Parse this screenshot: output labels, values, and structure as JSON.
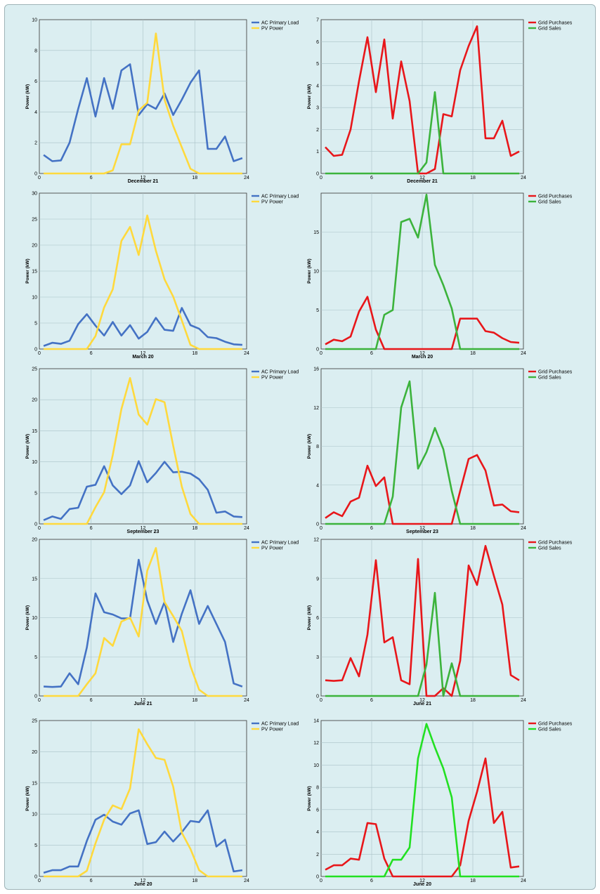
{
  "chart_data": [
    {
      "type": "line",
      "title": "",
      "xlabel": "December 21",
      "ylabel": "Power (kW)",
      "xlim": [
        0,
        24
      ],
      "ylim": [
        0,
        10
      ],
      "xticks": [
        0,
        6,
        12,
        18,
        24
      ],
      "yticks": [
        0,
        2,
        4,
        6,
        8,
        10
      ],
      "grid": true,
      "legend": "top-right",
      "x": [
        0.5,
        1.5,
        2.5,
        3.5,
        4.5,
        5.5,
        6.5,
        7.5,
        8.5,
        9.5,
        10.5,
        11.5,
        12.5,
        13.5,
        14.5,
        15.5,
        16.5,
        17.5,
        18.5,
        19.5,
        20.5,
        21.5,
        22.5,
        23.5
      ],
      "series": [
        {
          "name": "AC Primary Load",
          "color": "#4472c4",
          "values": [
            1.2,
            0.8,
            0.85,
            2.0,
            4.2,
            6.2,
            3.7,
            6.2,
            4.2,
            6.7,
            7.1,
            3.8,
            4.5,
            4.2,
            5.2,
            3.8,
            4.8,
            5.9,
            6.7,
            1.6,
            1.6,
            2.4,
            0.8,
            1.0
          ]
        },
        {
          "name": "PV Power",
          "color": "#ffd93d",
          "values": [
            0,
            0,
            0,
            0,
            0,
            0,
            0,
            0,
            0.2,
            1.9,
            1.9,
            4.1,
            4.6,
            9.1,
            4.8,
            3.1,
            1.7,
            0.3,
            0,
            0,
            0,
            0,
            0,
            0
          ]
        }
      ]
    },
    {
      "type": "line",
      "title": "",
      "xlabel": "December 21",
      "ylabel": "Power (kW)",
      "xlim": [
        0,
        24
      ],
      "ylim": [
        0,
        7
      ],
      "xticks": [
        0,
        6,
        12,
        18,
        24
      ],
      "yticks": [
        0,
        1,
        2,
        3,
        4,
        5,
        6,
        7
      ],
      "grid": true,
      "legend": "top-right",
      "x": [
        0.5,
        1.5,
        2.5,
        3.5,
        4.5,
        5.5,
        6.5,
        7.5,
        8.5,
        9.5,
        10.5,
        11.5,
        12.5,
        13.5,
        14.5,
        15.5,
        16.5,
        17.5,
        18.5,
        19.5,
        20.5,
        21.5,
        22.5,
        23.5
      ],
      "series": [
        {
          "name": "Grid Purchases",
          "color": "#e8161a",
          "values": [
            1.2,
            0.8,
            0.85,
            2.0,
            4.2,
            6.2,
            3.7,
            6.1,
            2.5,
            5.1,
            3.3,
            0,
            0,
            0.2,
            2.7,
            2.6,
            4.7,
            5.8,
            6.7,
            1.6,
            1.6,
            2.4,
            0.8,
            1.0
          ]
        },
        {
          "name": "Grid Sales",
          "color": "#3cb33c",
          "values": [
            0,
            0,
            0,
            0,
            0,
            0,
            0,
            0,
            0,
            0,
            0,
            0,
            0.5,
            3.7,
            0,
            0,
            0,
            0,
            0,
            0,
            0,
            0,
            0,
            0
          ]
        }
      ]
    },
    {
      "type": "line",
      "title": "",
      "xlabel": "March 20",
      "ylabel": "Power (kW)",
      "xlim": [
        0,
        24
      ],
      "ylim": [
        0,
        30
      ],
      "xticks": [
        0,
        6,
        12,
        18,
        24
      ],
      "yticks": [
        0,
        5,
        10,
        15,
        20,
        25,
        30
      ],
      "grid": true,
      "legend": "top-right",
      "x": [
        0.5,
        1.5,
        2.5,
        3.5,
        4.5,
        5.5,
        6.5,
        7.5,
        8.5,
        9.5,
        10.5,
        11.5,
        12.5,
        13.5,
        14.5,
        15.5,
        16.5,
        17.5,
        18.5,
        19.5,
        20.5,
        21.5,
        22.5,
        23.5
      ],
      "series": [
        {
          "name": "AC Primary Load",
          "color": "#4472c4",
          "values": [
            0.6,
            1.2,
            1.0,
            1.6,
            4.8,
            6.7,
            4.5,
            2.6,
            5.2,
            2.6,
            4.6,
            2.0,
            3.3,
            6.0,
            3.7,
            3.5,
            7.9,
            4.6,
            3.9,
            2.3,
            2.1,
            1.4,
            0.9,
            0.8
          ]
        },
        {
          "name": "PV Power",
          "color": "#ffd93d",
          "values": [
            0,
            0,
            0,
            0,
            0,
            0,
            2.5,
            8.0,
            11.5,
            20.8,
            23.5,
            18.1,
            25.7,
            18.9,
            13.4,
            10.1,
            5.5,
            0.8,
            0,
            0,
            0,
            0,
            0,
            0
          ]
        }
      ]
    },
    {
      "type": "line",
      "title": "",
      "xlabel": "March 20",
      "ylabel": "Power (kW)",
      "xlim": [
        0,
        24
      ],
      "ylim": [
        0,
        20
      ],
      "xticks": [
        0,
        6,
        12,
        18,
        24
      ],
      "yticks": [
        0,
        5,
        10,
        15
      ],
      "grid": true,
      "legend": "top-right",
      "x": [
        0.5,
        1.5,
        2.5,
        3.5,
        4.5,
        5.5,
        6.5,
        7.5,
        8.5,
        9.5,
        10.5,
        11.5,
        12.5,
        13.5,
        14.5,
        15.5,
        16.5,
        17.5,
        18.5,
        19.5,
        20.5,
        21.5,
        22.5,
        23.5
      ],
      "series": [
        {
          "name": "Grid Purchases",
          "color": "#e8161a",
          "values": [
            0.6,
            1.2,
            1.0,
            1.6,
            4.8,
            6.7,
            2.5,
            0,
            0,
            0,
            0,
            0,
            0,
            0,
            0,
            0,
            3.9,
            3.9,
            3.9,
            2.3,
            2.1,
            1.4,
            0.9,
            0.8
          ]
        },
        {
          "name": "Grid Sales",
          "color": "#3cb33c",
          "values": [
            0,
            0,
            0,
            0,
            0,
            0,
            0,
            4.4,
            5.0,
            16.3,
            16.7,
            14.3,
            19.8,
            10.8,
            8.2,
            5.2,
            0,
            0,
            0,
            0,
            0,
            0,
            0,
            0
          ]
        }
      ]
    },
    {
      "type": "line",
      "title": "",
      "xlabel": "September 23",
      "ylabel": "Power (kW)",
      "xlim": [
        0,
        24
      ],
      "ylim": [
        0,
        25
      ],
      "xticks": [
        0,
        6,
        12,
        18,
        24
      ],
      "yticks": [
        0,
        5,
        10,
        15,
        20,
        25
      ],
      "grid": true,
      "legend": "top-right",
      "x": [
        0.5,
        1.5,
        2.5,
        3.5,
        4.5,
        5.5,
        6.5,
        7.5,
        8.5,
        9.5,
        10.5,
        11.5,
        12.5,
        13.5,
        14.5,
        15.5,
        16.5,
        17.5,
        18.5,
        19.5,
        20.5,
        21.5,
        22.5,
        23.5
      ],
      "series": [
        {
          "name": "AC Primary Load",
          "color": "#4472c4",
          "values": [
            0.6,
            1.2,
            0.8,
            2.4,
            2.6,
            6.0,
            6.3,
            9.3,
            6.2,
            4.8,
            6.2,
            10.1,
            6.7,
            8.2,
            10.0,
            8.3,
            8.4,
            8.1,
            7.2,
            5.5,
            1.8,
            2.0,
            1.2,
            1.1
          ]
        },
        {
          "name": "PV Power",
          "color": "#ffd93d",
          "values": [
            0,
            0,
            0,
            0,
            0,
            0,
            2.7,
            5.1,
            11.1,
            18.5,
            23.5,
            17.6,
            16.0,
            20.1,
            19.6,
            12.6,
            6.0,
            1.6,
            0,
            0,
            0,
            0,
            0,
            0
          ]
        }
      ]
    },
    {
      "type": "line",
      "title": "",
      "xlabel": "September 23",
      "ylabel": "Power (kW)",
      "xlim": [
        0,
        24
      ],
      "ylim": [
        0,
        16
      ],
      "xticks": [
        0,
        6,
        12,
        18,
        24
      ],
      "yticks": [
        0,
        4,
        8,
        12,
        16
      ],
      "grid": true,
      "legend": "top-right",
      "x": [
        0.5,
        1.5,
        2.5,
        3.5,
        4.5,
        5.5,
        6.5,
        7.5,
        8.5,
        9.5,
        10.5,
        11.5,
        12.5,
        13.5,
        14.5,
        15.5,
        16.5,
        17.5,
        18.5,
        19.5,
        20.5,
        21.5,
        22.5,
        23.5
      ],
      "series": [
        {
          "name": "Grid Purchases",
          "color": "#e8161a",
          "values": [
            0.6,
            1.2,
            0.8,
            2.3,
            2.7,
            6.0,
            3.9,
            4.8,
            0,
            0,
            0,
            0,
            0,
            0,
            0,
            0,
            3.4,
            6.7,
            7.1,
            5.5,
            1.9,
            2.0,
            1.3,
            1.2
          ]
        },
        {
          "name": "Grid Sales",
          "color": "#3cb33c",
          "values": [
            0,
            0,
            0,
            0,
            0,
            0,
            0,
            0,
            2.8,
            12.0,
            14.7,
            5.7,
            7.4,
            9.9,
            7.7,
            3.4,
            0,
            0,
            0,
            0,
            0,
            0,
            0,
            0
          ]
        }
      ]
    },
    {
      "type": "line",
      "title": "",
      "xlabel": "June 21",
      "ylabel": "Power (kW)",
      "xlim": [
        0,
        24
      ],
      "ylim": [
        0,
        20
      ],
      "xticks": [
        0,
        6,
        12,
        18,
        24
      ],
      "yticks": [
        0,
        5,
        10,
        15,
        20
      ],
      "grid": true,
      "legend": "top-right",
      "x": [
        0.5,
        1.5,
        2.5,
        3.5,
        4.5,
        5.5,
        6.5,
        7.5,
        8.5,
        9.5,
        10.5,
        11.5,
        12.5,
        13.5,
        14.5,
        15.5,
        16.5,
        17.5,
        18.5,
        19.5,
        20.5,
        21.5,
        22.5,
        23.5
      ],
      "series": [
        {
          "name": "AC Primary Load",
          "color": "#4472c4",
          "values": [
            1.2,
            1.15,
            1.2,
            2.9,
            1.5,
            6.2,
            13.1,
            10.7,
            10.4,
            9.9,
            9.9,
            17.4,
            12.2,
            9.2,
            12.0,
            6.9,
            10.5,
            13.5,
            9.2,
            11.5,
            9.2,
            6.9,
            1.6,
            1.2
          ]
        },
        {
          "name": "PV Power",
          "color": "#ffd93d",
          "values": [
            0,
            0,
            0,
            0,
            0,
            1.5,
            2.9,
            7.4,
            6.4,
            9.5,
            10.0,
            7.6,
            16.0,
            18.9,
            12.0,
            10.2,
            8.3,
            3.8,
            0.8,
            0,
            0,
            0,
            0,
            0
          ]
        }
      ]
    },
    {
      "type": "line",
      "title": "",
      "xlabel": "June 21",
      "ylabel": "Power (kW)",
      "xlim": [
        0,
        24
      ],
      "ylim": [
        0,
        12
      ],
      "xticks": [
        0,
        6,
        12,
        18,
        24
      ],
      "yticks": [
        0,
        3,
        6,
        9,
        12
      ],
      "grid": true,
      "legend": "top-right",
      "x": [
        0.5,
        1.5,
        2.5,
        3.5,
        4.5,
        5.5,
        6.5,
        7.5,
        8.5,
        9.5,
        10.5,
        11.5,
        12.5,
        13.5,
        14.5,
        15.5,
        16.5,
        17.5,
        18.5,
        19.5,
        20.5,
        21.5,
        22.5,
        23.5
      ],
      "series": [
        {
          "name": "Grid Purchases",
          "color": "#e8161a",
          "values": [
            1.2,
            1.15,
            1.2,
            2.9,
            1.5,
            4.7,
            10.4,
            4.1,
            4.5,
            1.2,
            0.9,
            10.5,
            0,
            0,
            0.6,
            0,
            2.7,
            10.0,
            8.5,
            11.5,
            9.2,
            7.0,
            1.6,
            1.2
          ]
        },
        {
          "name": "Grid Sales",
          "color": "#3cb33c",
          "values": [
            0,
            0,
            0,
            0,
            0,
            0,
            0,
            0,
            0,
            0,
            0,
            0,
            2.4,
            7.9,
            0,
            2.5,
            0,
            0,
            0,
            0,
            0,
            0,
            0,
            0
          ]
        }
      ]
    },
    {
      "type": "line",
      "title": "",
      "xlabel": "June 20",
      "ylabel": "Power (kW)",
      "xlim": [
        0,
        24
      ],
      "ylim": [
        0,
        25
      ],
      "xticks": [
        0,
        6,
        12,
        18,
        24
      ],
      "yticks": [
        0,
        5,
        10,
        15,
        20,
        25
      ],
      "grid": true,
      "legend": "top-right",
      "x": [
        0.5,
        1.5,
        2.5,
        3.5,
        4.5,
        5.5,
        6.5,
        7.5,
        8.5,
        9.5,
        10.5,
        11.5,
        12.5,
        13.5,
        14.5,
        15.5,
        16.5,
        17.5,
        18.5,
        19.5,
        20.5,
        21.5,
        22.5,
        23.5
      ],
      "series": [
        {
          "name": "AC Primary Load",
          "color": "#4472c4",
          "values": [
            0.6,
            1.0,
            1.0,
            1.6,
            1.6,
            5.7,
            9.1,
            9.9,
            8.8,
            8.3,
            10.1,
            10.6,
            5.2,
            5.5,
            7.2,
            5.6,
            7.1,
            8.9,
            8.7,
            10.6,
            4.8,
            5.9,
            0.8,
            1.0
          ]
        },
        {
          "name": "PV Power",
          "color": "#ffd93d",
          "values": [
            0,
            0,
            0,
            0,
            0,
            0.9,
            5.3,
            9.1,
            11.4,
            10.8,
            14.1,
            23.6,
            21.2,
            19.0,
            18.7,
            14.4,
            7.0,
            4.4,
            1.0,
            0,
            0,
            0,
            0,
            0
          ]
        }
      ]
    },
    {
      "type": "line",
      "title": "",
      "xlabel": "June 20",
      "ylabel": "Power (kW)",
      "xlim": [
        0,
        24
      ],
      "ylim": [
        0,
        14
      ],
      "xticks": [
        0,
        6,
        12,
        18,
        24
      ],
      "yticks": [
        0,
        2,
        4,
        6,
        8,
        10,
        12,
        14
      ],
      "grid": true,
      "legend": "top-right",
      "x": [
        0.5,
        1.5,
        2.5,
        3.5,
        4.5,
        5.5,
        6.5,
        7.5,
        8.5,
        9.5,
        10.5,
        11.5,
        12.5,
        13.5,
        14.5,
        15.5,
        16.5,
        17.5,
        18.5,
        19.5,
        20.5,
        21.5,
        22.5,
        23.5
      ],
      "series": [
        {
          "name": "Grid Purchases",
          "color": "#e8161a",
          "values": [
            0.6,
            1.0,
            1.0,
            1.6,
            1.5,
            4.8,
            4.7,
            1.6,
            0,
            0,
            0,
            0,
            0,
            0,
            0,
            0,
            1.0,
            5.0,
            7.6,
            10.6,
            4.8,
            5.8,
            0.8,
            0.9
          ]
        },
        {
          "name": "Grid Sales",
          "color": "#22e022",
          "values": [
            0,
            0,
            0,
            0,
            0,
            0,
            0,
            0,
            1.5,
            1.5,
            2.6,
            10.6,
            13.7,
            11.6,
            9.7,
            7.1,
            0,
            0,
            0,
            0,
            0,
            0,
            0,
            0
          ]
        }
      ]
    }
  ]
}
